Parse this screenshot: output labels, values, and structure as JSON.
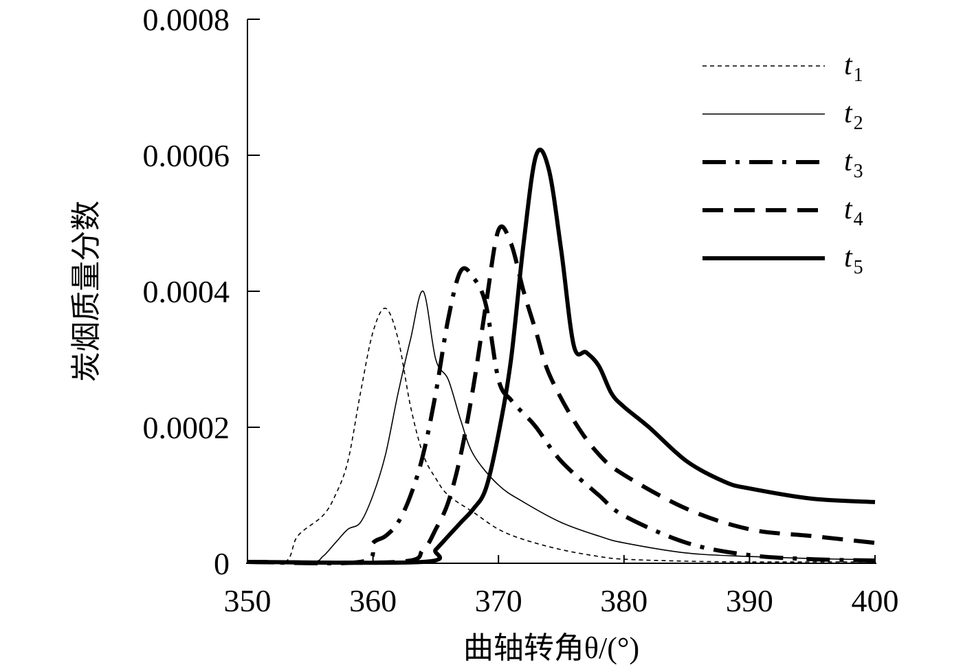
{
  "chart_data": {
    "type": "line",
    "title": "",
    "xlabel": "曲轴转角θ/(°)",
    "ylabel": "炭烟质量分数",
    "xlim": [
      350,
      400
    ],
    "ylim": [
      0,
      0.0008
    ],
    "xticks": [
      "350",
      "360",
      "370",
      "380",
      "390",
      "400"
    ],
    "yticks": [
      "0",
      "0.0002",
      "0.0004",
      "0.0006",
      "0.0008"
    ],
    "grid": false,
    "legend_position": "top-right",
    "series": [
      {
        "name": "t1",
        "name_base": "t",
        "name_sub": "1",
        "style": "dotted-thin",
        "x": [
          350,
          353,
          354,
          356,
          357,
          358,
          359,
          360,
          361,
          362,
          363,
          364,
          365,
          366,
          368,
          370,
          372,
          375,
          378,
          380,
          385,
          390,
          395,
          400
        ],
        "y": [
          2e-06,
          2e-06,
          4e-05,
          7e-05,
          0.0001,
          0.00015,
          0.00025,
          0.00034,
          0.000375,
          0.00033,
          0.00023,
          0.00016,
          0.000125,
          0.0001,
          7.5e-05,
          5e-05,
          3.5e-05,
          2e-05,
          1e-05,
          6e-06,
          3e-06,
          2e-06,
          2e-06,
          2e-06
        ]
      },
      {
        "name": "t2",
        "name_base": "t",
        "name_sub": "2",
        "style": "solid-thin",
        "x": [
          350,
          355,
          356,
          357,
          358,
          359,
          360,
          361,
          362,
          363,
          364,
          365,
          366,
          367,
          368,
          370,
          372,
          375,
          378,
          380,
          385,
          390,
          395,
          400
        ],
        "y": [
          2e-06,
          2e-06,
          1e-05,
          3e-05,
          5e-05,
          6e-05,
          0.0001,
          0.00016,
          0.00025,
          0.00033,
          0.0004,
          0.0003,
          0.00027,
          0.00021,
          0.00016,
          0.000115,
          9e-05,
          6e-05,
          4e-05,
          3e-05,
          1.5e-05,
          1e-05,
          7e-06,
          5e-06
        ]
      },
      {
        "name": "t3",
        "name_base": "t",
        "name_sub": "3",
        "style": "dashdot-thick",
        "x": [
          350,
          359,
          360,
          361,
          362,
          363,
          364,
          365,
          366,
          367,
          368,
          369,
          370,
          371,
          372,
          373,
          375,
          378,
          380,
          385,
          390,
          395,
          400
        ],
        "y": [
          2e-06,
          2e-06,
          3e-05,
          4e-05,
          6e-05,
          0.0001,
          0.00016,
          0.00025,
          0.00036,
          0.00043,
          0.00042,
          0.00038,
          0.00027,
          0.00024,
          0.00022,
          0.0002,
          0.00015,
          0.0001,
          7e-05,
          3e-05,
          1.2e-05,
          6e-06,
          4e-06
        ]
      },
      {
        "name": "t4",
        "name_base": "t",
        "name_sub": "4",
        "style": "dash-thick",
        "x": [
          350,
          362,
          364,
          365,
          366,
          367,
          368,
          369,
          370,
          371,
          372,
          373,
          374,
          376,
          378,
          380,
          385,
          390,
          395,
          400
        ],
        "y": [
          2e-06,
          2e-06,
          2e-05,
          5e-05,
          9e-05,
          0.00016,
          0.00026,
          0.00038,
          0.00049,
          0.00047,
          0.0004,
          0.00034,
          0.00028,
          0.00021,
          0.00016,
          0.00013,
          8e-05,
          5e-05,
          4e-05,
          3e-05
        ]
      },
      {
        "name": "t5",
        "name_base": "t",
        "name_sub": "5",
        "style": "solid-thick",
        "x": [
          350,
          364,
          365,
          366,
          367,
          368,
          369,
          370,
          371,
          372,
          373,
          374,
          375,
          376,
          377,
          378,
          379,
          380,
          382,
          385,
          388,
          390,
          395,
          400
        ],
        "y": [
          2e-06,
          2e-06,
          2e-05,
          4e-05,
          6e-05,
          8e-05,
          0.00011,
          0.00019,
          0.0003,
          0.00047,
          0.0006,
          0.00058,
          0.00046,
          0.00032,
          0.00031,
          0.00029,
          0.00025,
          0.00023,
          0.0002,
          0.00015,
          0.00012,
          0.00011,
          9.5e-05,
          9e-05
        ]
      }
    ]
  }
}
